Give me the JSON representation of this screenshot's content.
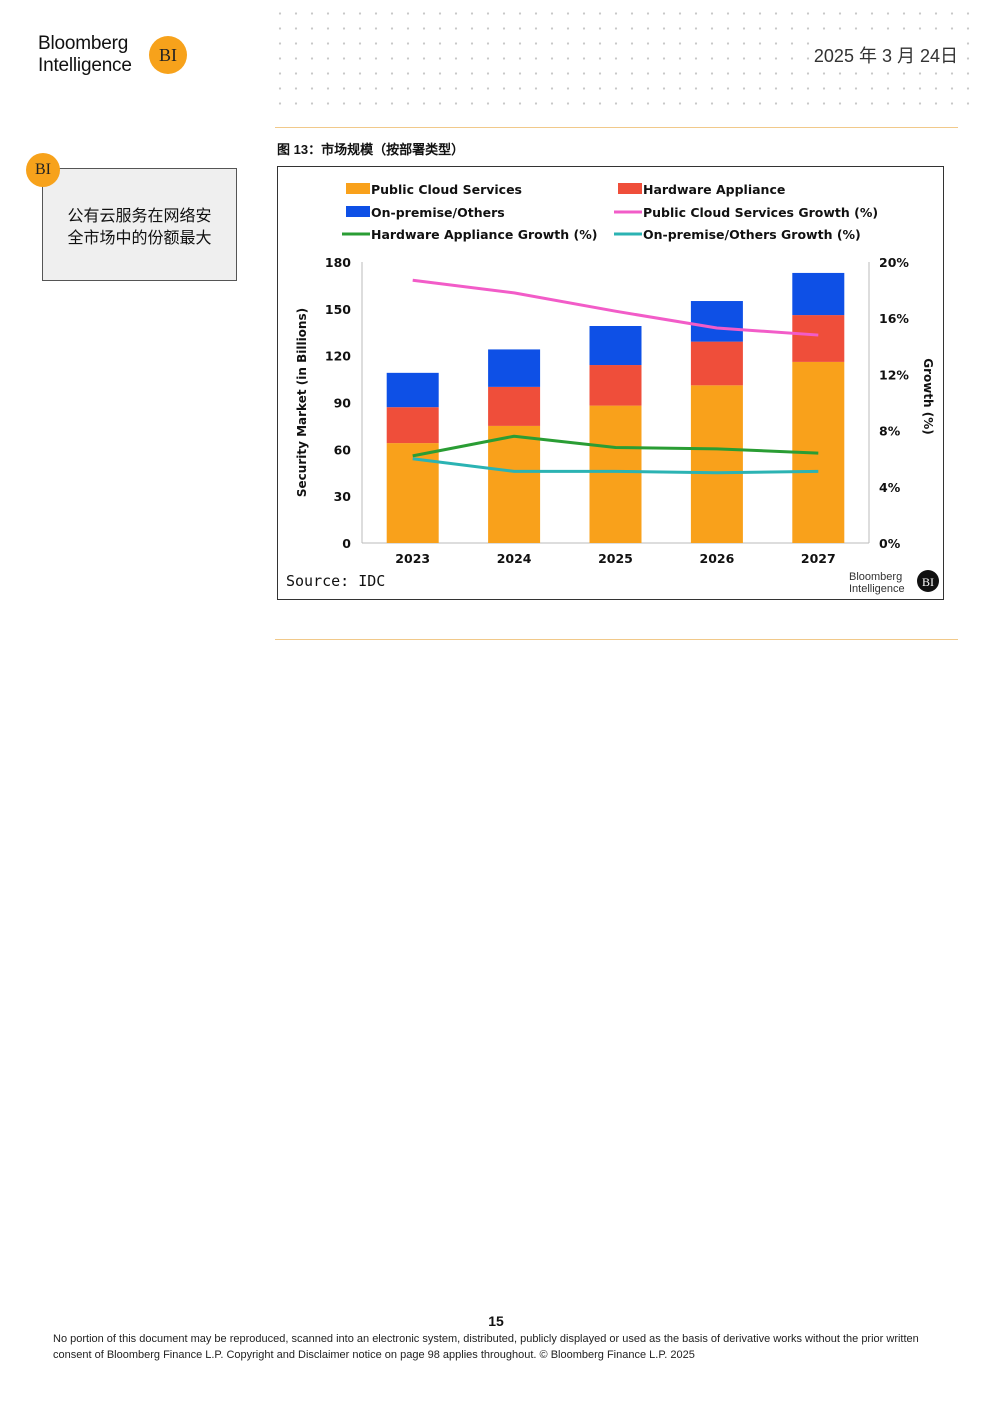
{
  "header": {
    "brand_line1": "Bloomberg",
    "brand_line2": "Intelligence",
    "badge_text": "BI",
    "date": "2025 年 3 月 24日"
  },
  "figure": {
    "caption": "图 13：市场规模（按部署类型）"
  },
  "sidebar": {
    "badge_text": "BI",
    "note": "公有云服务在网络安全市场中的份额最大"
  },
  "chart_data": {
    "type": "bar",
    "stacked": true,
    "categories": [
      "2023",
      "2024",
      "2025",
      "2026",
      "2027"
    ],
    "ylabel": "Security Market (in Billions)",
    "ylim": [
      0,
      180
    ],
    "yticks": [
      "0",
      "30",
      "60",
      "90",
      "120",
      "150",
      "180"
    ],
    "y2label": "Growth (%)",
    "y2lim": [
      0,
      20
    ],
    "y2ticks": [
      "0%",
      "4%",
      "8%",
      "12%",
      "16%",
      "20%"
    ],
    "series": [
      {
        "name": "Public Cloud Services",
        "kind": "bar",
        "color": "#f9a11b",
        "values": [
          64,
          75,
          88,
          101,
          116
        ]
      },
      {
        "name": "Hardware Appliance",
        "kind": "bar",
        "color": "#ef4e3a",
        "values": [
          23,
          25,
          26,
          28,
          30
        ]
      },
      {
        "name": "On-premise/Others",
        "kind": "bar",
        "color": "#0e50e6",
        "values": [
          22,
          24,
          25,
          26,
          27
        ]
      },
      {
        "name": "Public Cloud Services Growth (%)",
        "kind": "line",
        "color": "#f25cc8",
        "values": [
          18.7,
          17.8,
          16.5,
          15.3,
          14.8
        ]
      },
      {
        "name": "Hardware Appliance Growth (%)",
        "kind": "line",
        "color": "#2a9d34",
        "values": [
          6.2,
          7.6,
          6.8,
          6.7,
          6.4
        ]
      },
      {
        "name": "On-premise/Others Growth (%)",
        "kind": "line",
        "color": "#2bb3b3",
        "values": [
          6.0,
          5.1,
          5.1,
          5.0,
          5.1
        ]
      }
    ],
    "legend_position": "top",
    "grid": false,
    "source": "Source: IDC",
    "watermark_line1": "Bloomberg",
    "watermark_line2": "Intelligence",
    "watermark_badge": "BI"
  },
  "footer": {
    "page_number": "15",
    "disclaimer": "No portion of this document may be reproduced, scanned into an electronic system, distributed, publicly displayed or used as the basis of derivative works without the prior written consent of Bloomberg Finance L.P. Copyright and Disclaimer notice on page 98 applies throughout. © Bloomberg Finance L.P. 2025"
  }
}
